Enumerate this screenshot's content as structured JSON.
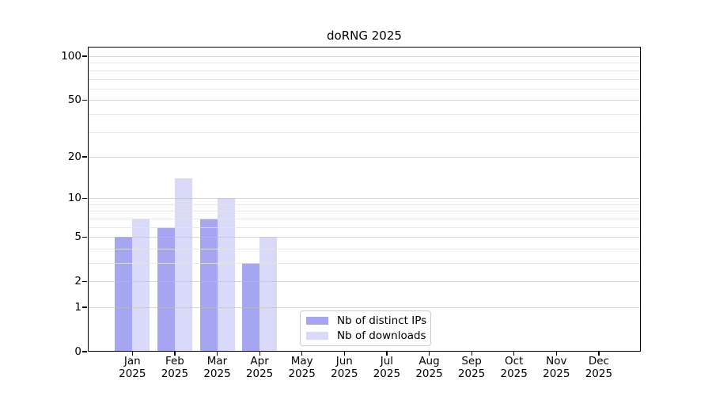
{
  "chart_data": {
    "type": "bar",
    "title": "doRNG 2025",
    "x": [
      {
        "month": "Jan",
        "year": "2025"
      },
      {
        "month": "Feb",
        "year": "2025"
      },
      {
        "month": "Mar",
        "year": "2025"
      },
      {
        "month": "Apr",
        "year": "2025"
      },
      {
        "month": "May",
        "year": "2025"
      },
      {
        "month": "Jun",
        "year": "2025"
      },
      {
        "month": "Jul",
        "year": "2025"
      },
      {
        "month": "Aug",
        "year": "2025"
      },
      {
        "month": "Sep",
        "year": "2025"
      },
      {
        "month": "Oct",
        "year": "2025"
      },
      {
        "month": "Nov",
        "year": "2025"
      },
      {
        "month": "Dec",
        "year": "2025"
      }
    ],
    "series": [
      {
        "name": "Nb of distinct IPs",
        "color": "#a5a5f2",
        "values": [
          5,
          6,
          7,
          3,
          0,
          0,
          0,
          0,
          0,
          0,
          0,
          0
        ]
      },
      {
        "name": "Nb of downloads",
        "color": "#d9d9f9",
        "values": [
          7,
          14,
          10,
          5,
          0,
          0,
          0,
          0,
          0,
          0,
          0,
          0
        ]
      }
    ],
    "xlabel": "",
    "ylabel": "",
    "ylim": [
      0,
      100
    ],
    "y_scale": "log10(1+x)",
    "y_major_ticks": [
      0,
      1,
      2,
      5,
      10,
      20,
      50,
      100
    ],
    "y_minor_gridlines": [
      3,
      4,
      6,
      7,
      8,
      9,
      30,
      40,
      60,
      70,
      80,
      90
    ],
    "grid": "horizontal",
    "legend_position": "inside-bottom-center"
  },
  "colors": {
    "background": "#ffffff",
    "spine": "#000000",
    "grid_major": "#bebebe",
    "grid_minor": "#e4e4e4",
    "legend_border": "#cccccc"
  }
}
